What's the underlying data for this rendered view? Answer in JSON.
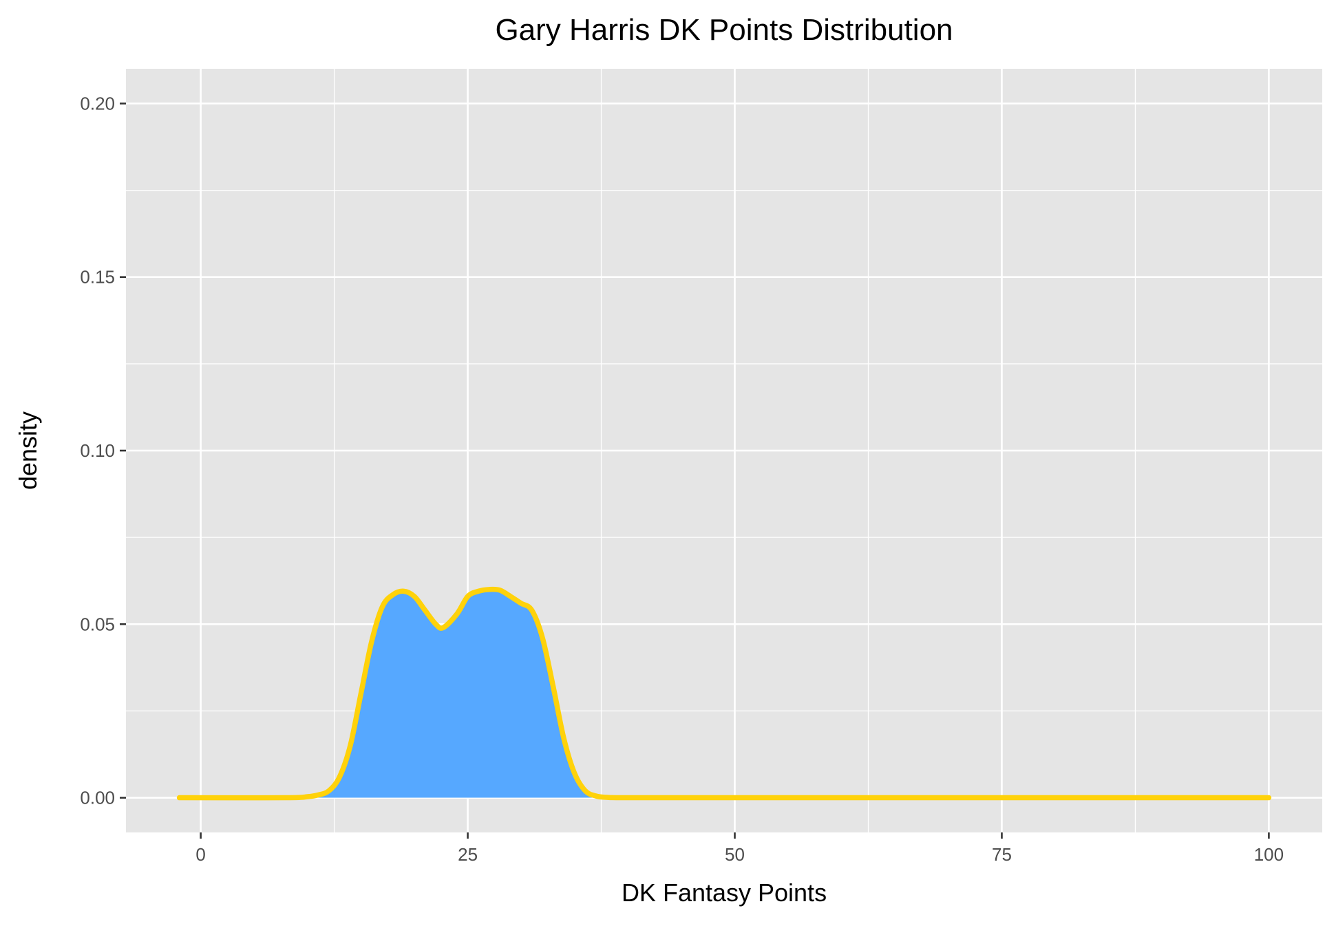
{
  "chart_data": {
    "type": "area",
    "title": "Gary Harris DK Points Distribution",
    "xlabel": "DK Fantasy Points",
    "ylabel": "density",
    "xlim": [
      -7,
      105
    ],
    "ylim": [
      -0.01,
      0.21
    ],
    "x_ticks": [
      0,
      25,
      50,
      75,
      100
    ],
    "x_tick_labels": [
      "0",
      "25",
      "50",
      "75",
      "100"
    ],
    "y_ticks": [
      0.0,
      0.05,
      0.1,
      0.15,
      0.2
    ],
    "y_tick_labels": [
      "0.00",
      "0.05",
      "0.10",
      "0.15",
      "0.20"
    ],
    "x_minor_ticks": [
      12.5,
      37.5,
      62.5,
      87.5
    ],
    "y_minor_ticks": [
      0.025,
      0.075,
      0.125,
      0.175
    ],
    "grid": true,
    "legend": "none",
    "colors": {
      "panel_background": "#e5e5e5",
      "grid_line": "#ffffff",
      "fill": "#56a8ff",
      "line": "#ffd20a"
    },
    "series": [
      {
        "x": [
          -2,
          8,
          10,
          11,
          12,
          13,
          14,
          15,
          16,
          17,
          18,
          19,
          20,
          21,
          22,
          22.7,
          24,
          25,
          26,
          27,
          28,
          29,
          30,
          31,
          32,
          33,
          34,
          35,
          36,
          37,
          38,
          40,
          50,
          75,
          100
        ],
        "y": [
          0.0,
          0.0,
          0.0003,
          0.0008,
          0.002,
          0.006,
          0.015,
          0.03,
          0.045,
          0.055,
          0.0585,
          0.0595,
          0.058,
          0.054,
          0.05,
          0.049,
          0.053,
          0.058,
          0.0595,
          0.06,
          0.0598,
          0.058,
          0.056,
          0.054,
          0.046,
          0.032,
          0.017,
          0.007,
          0.002,
          0.0005,
          0.0001,
          0.0,
          0.0,
          0.0,
          0.0
        ]
      }
    ]
  }
}
